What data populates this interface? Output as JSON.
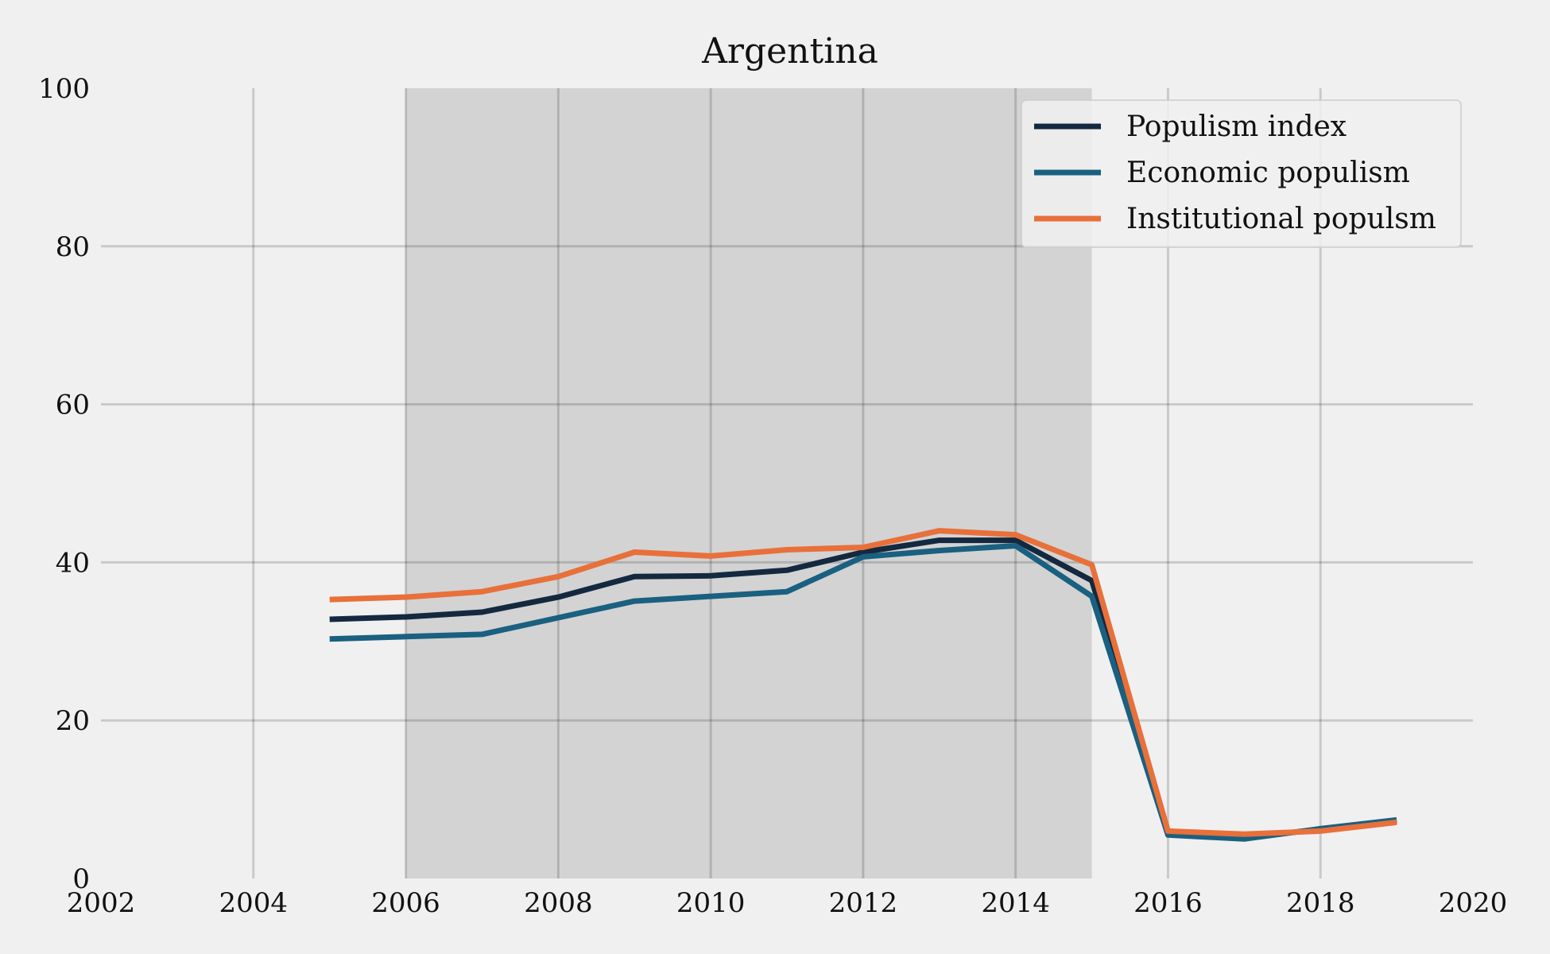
{
  "chart_data": {
    "type": "line",
    "title": "Argentina",
    "xlabel": "",
    "ylabel": "",
    "xlim": [
      2002,
      2020
    ],
    "ylim": [
      0,
      100
    ],
    "xticks": [
      2002,
      2004,
      2006,
      2008,
      2010,
      2012,
      2014,
      2016,
      2018,
      2020
    ],
    "yticks": [
      0,
      20,
      40,
      60,
      80,
      100
    ],
    "grid": true,
    "legend_position": "top-right",
    "shaded_period": [
      2006,
      2015
    ],
    "x": [
      2005,
      2006,
      2007,
      2008,
      2009,
      2010,
      2011,
      2012,
      2013,
      2014,
      2015,
      2016,
      2017,
      2018,
      2019
    ],
    "series": [
      {
        "name": "Populism index",
        "color": "#14293f",
        "values": [
          32.8,
          33.1,
          33.7,
          35.6,
          38.2,
          38.3,
          39.0,
          41.3,
          42.8,
          42.8,
          37.7,
          5.7,
          5.2,
          6.2,
          7.3
        ]
      },
      {
        "name": "Economic populism",
        "color": "#1a6080",
        "values": [
          30.3,
          30.6,
          30.9,
          33.0,
          35.1,
          35.7,
          36.3,
          40.7,
          41.5,
          42.1,
          35.7,
          5.5,
          5.0,
          6.3,
          7.4
        ]
      },
      {
        "name": "Institutional populsm",
        "color": "#e8703a",
        "values": [
          35.3,
          35.6,
          36.3,
          38.2,
          41.3,
          40.8,
          41.6,
          41.9,
          44.0,
          43.5,
          39.7,
          6.0,
          5.6,
          6.0,
          7.1
        ]
      }
    ]
  }
}
